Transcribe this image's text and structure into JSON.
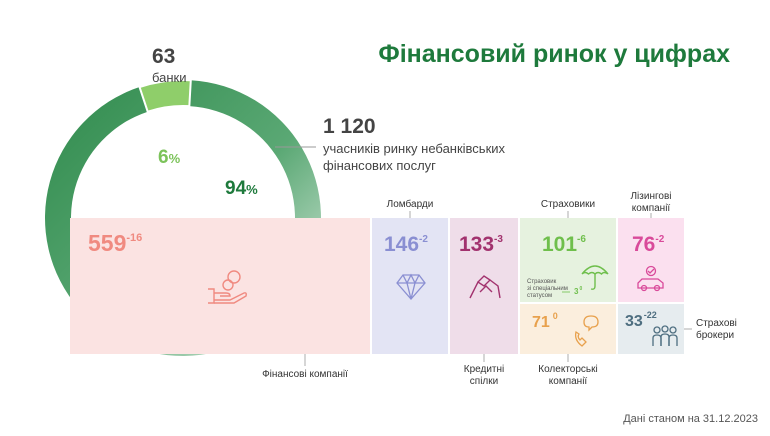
{
  "title": "Фінансовий ринок у цифрах",
  "colors": {
    "title": "#1e7a3c",
    "ring_dark": "#2f8a4c",
    "ring_light": "#e8f2ea",
    "banks_segment": "#8fce6a",
    "fin_companies_bg": "#fbe3e2",
    "fin_companies_text": "#f08a80",
    "lombards_bg": "#e3e4f4",
    "lombards_text": "#8a8fd2",
    "credit_unions_bg": "#efdde9",
    "credit_unions_text": "#a2326e",
    "insurers_bg": "#e6f2df",
    "insurers_text": "#6fbf4c",
    "leasing_bg": "#fbe0ef",
    "leasing_text": "#d94a9a",
    "collectors_bg": "#fbeedd",
    "collectors_text": "#e8a14d",
    "brokers_bg": "#e6ecef",
    "brokers_text": "#4e6e80"
  },
  "summary": {
    "banks_count": "63",
    "banks_label": "банки",
    "nonbank_count": "1 120",
    "nonbank_label_line1": "учасників ринку небанківських",
    "nonbank_label_line2": "фінансових послуг",
    "banks_share_num": "6",
    "nonbank_share_num": "94",
    "pct_sign": "%"
  },
  "chart_data": {
    "type": "pie",
    "title": "Фінансовий ринок у цифрах",
    "slices": [
      {
        "name": "банки",
        "value": 63,
        "share_percent": 6
      },
      {
        "name": "учасників ринку небанківських фінансових послуг",
        "value": 1120,
        "share_percent": 94
      }
    ],
    "nonbank_breakdown": [
      {
        "name": "Фінансові компанії",
        "value": 559,
        "change": -16,
        "icon": "hand-coins-icon"
      },
      {
        "name": "Ломбарди",
        "value": 146,
        "change": -2,
        "icon": "diamond-icon"
      },
      {
        "name": "Кредитні спілки",
        "value": 133,
        "change": -3,
        "icon": "handshake-icon"
      },
      {
        "name": "Страховики",
        "value": 101,
        "change": -6,
        "icon": "umbrella-icon",
        "note": {
          "line1": "Страховик",
          "line2": "зі спеціальним",
          "line3": "статусом",
          "value": 3,
          "change": 0
        }
      },
      {
        "name": "Лізингові компанії",
        "value": 76,
        "change": -2,
        "icon": "car-icon"
      },
      {
        "name": "Колекторські компанії",
        "value": 71,
        "change": 0,
        "icon": "phone-icon"
      },
      {
        "name": "Страхові брокери",
        "value": 33,
        "change": -22,
        "icon": "people-icon"
      }
    ]
  },
  "labels": {
    "lombards": "Ломбарди",
    "insurers": "Страховики",
    "leasing_line1": "Лізингові",
    "leasing_line2": "компанії",
    "fin_companies": "Фінансові компанії",
    "credit_line1": "Кредитні",
    "credit_line2": "спілки",
    "collectors_line1": "Колекторські",
    "collectors_line2": "компанії",
    "brokers_line1": "Страхові",
    "brokers_line2": "брокери"
  },
  "changes": {
    "fin": "-16",
    "lomb": "-2",
    "credit": "-3",
    "ins": "-6",
    "leasing": "-2",
    "coll": "0",
    "brokers": "-22",
    "special_value": "3",
    "special_change": "0"
  },
  "values": {
    "fin": "559",
    "lomb": "146",
    "credit": "133",
    "ins": "101",
    "leasing": "76",
    "coll": "71",
    "brokers": "33"
  },
  "footnote": "Дані станом на 31.12.2023"
}
